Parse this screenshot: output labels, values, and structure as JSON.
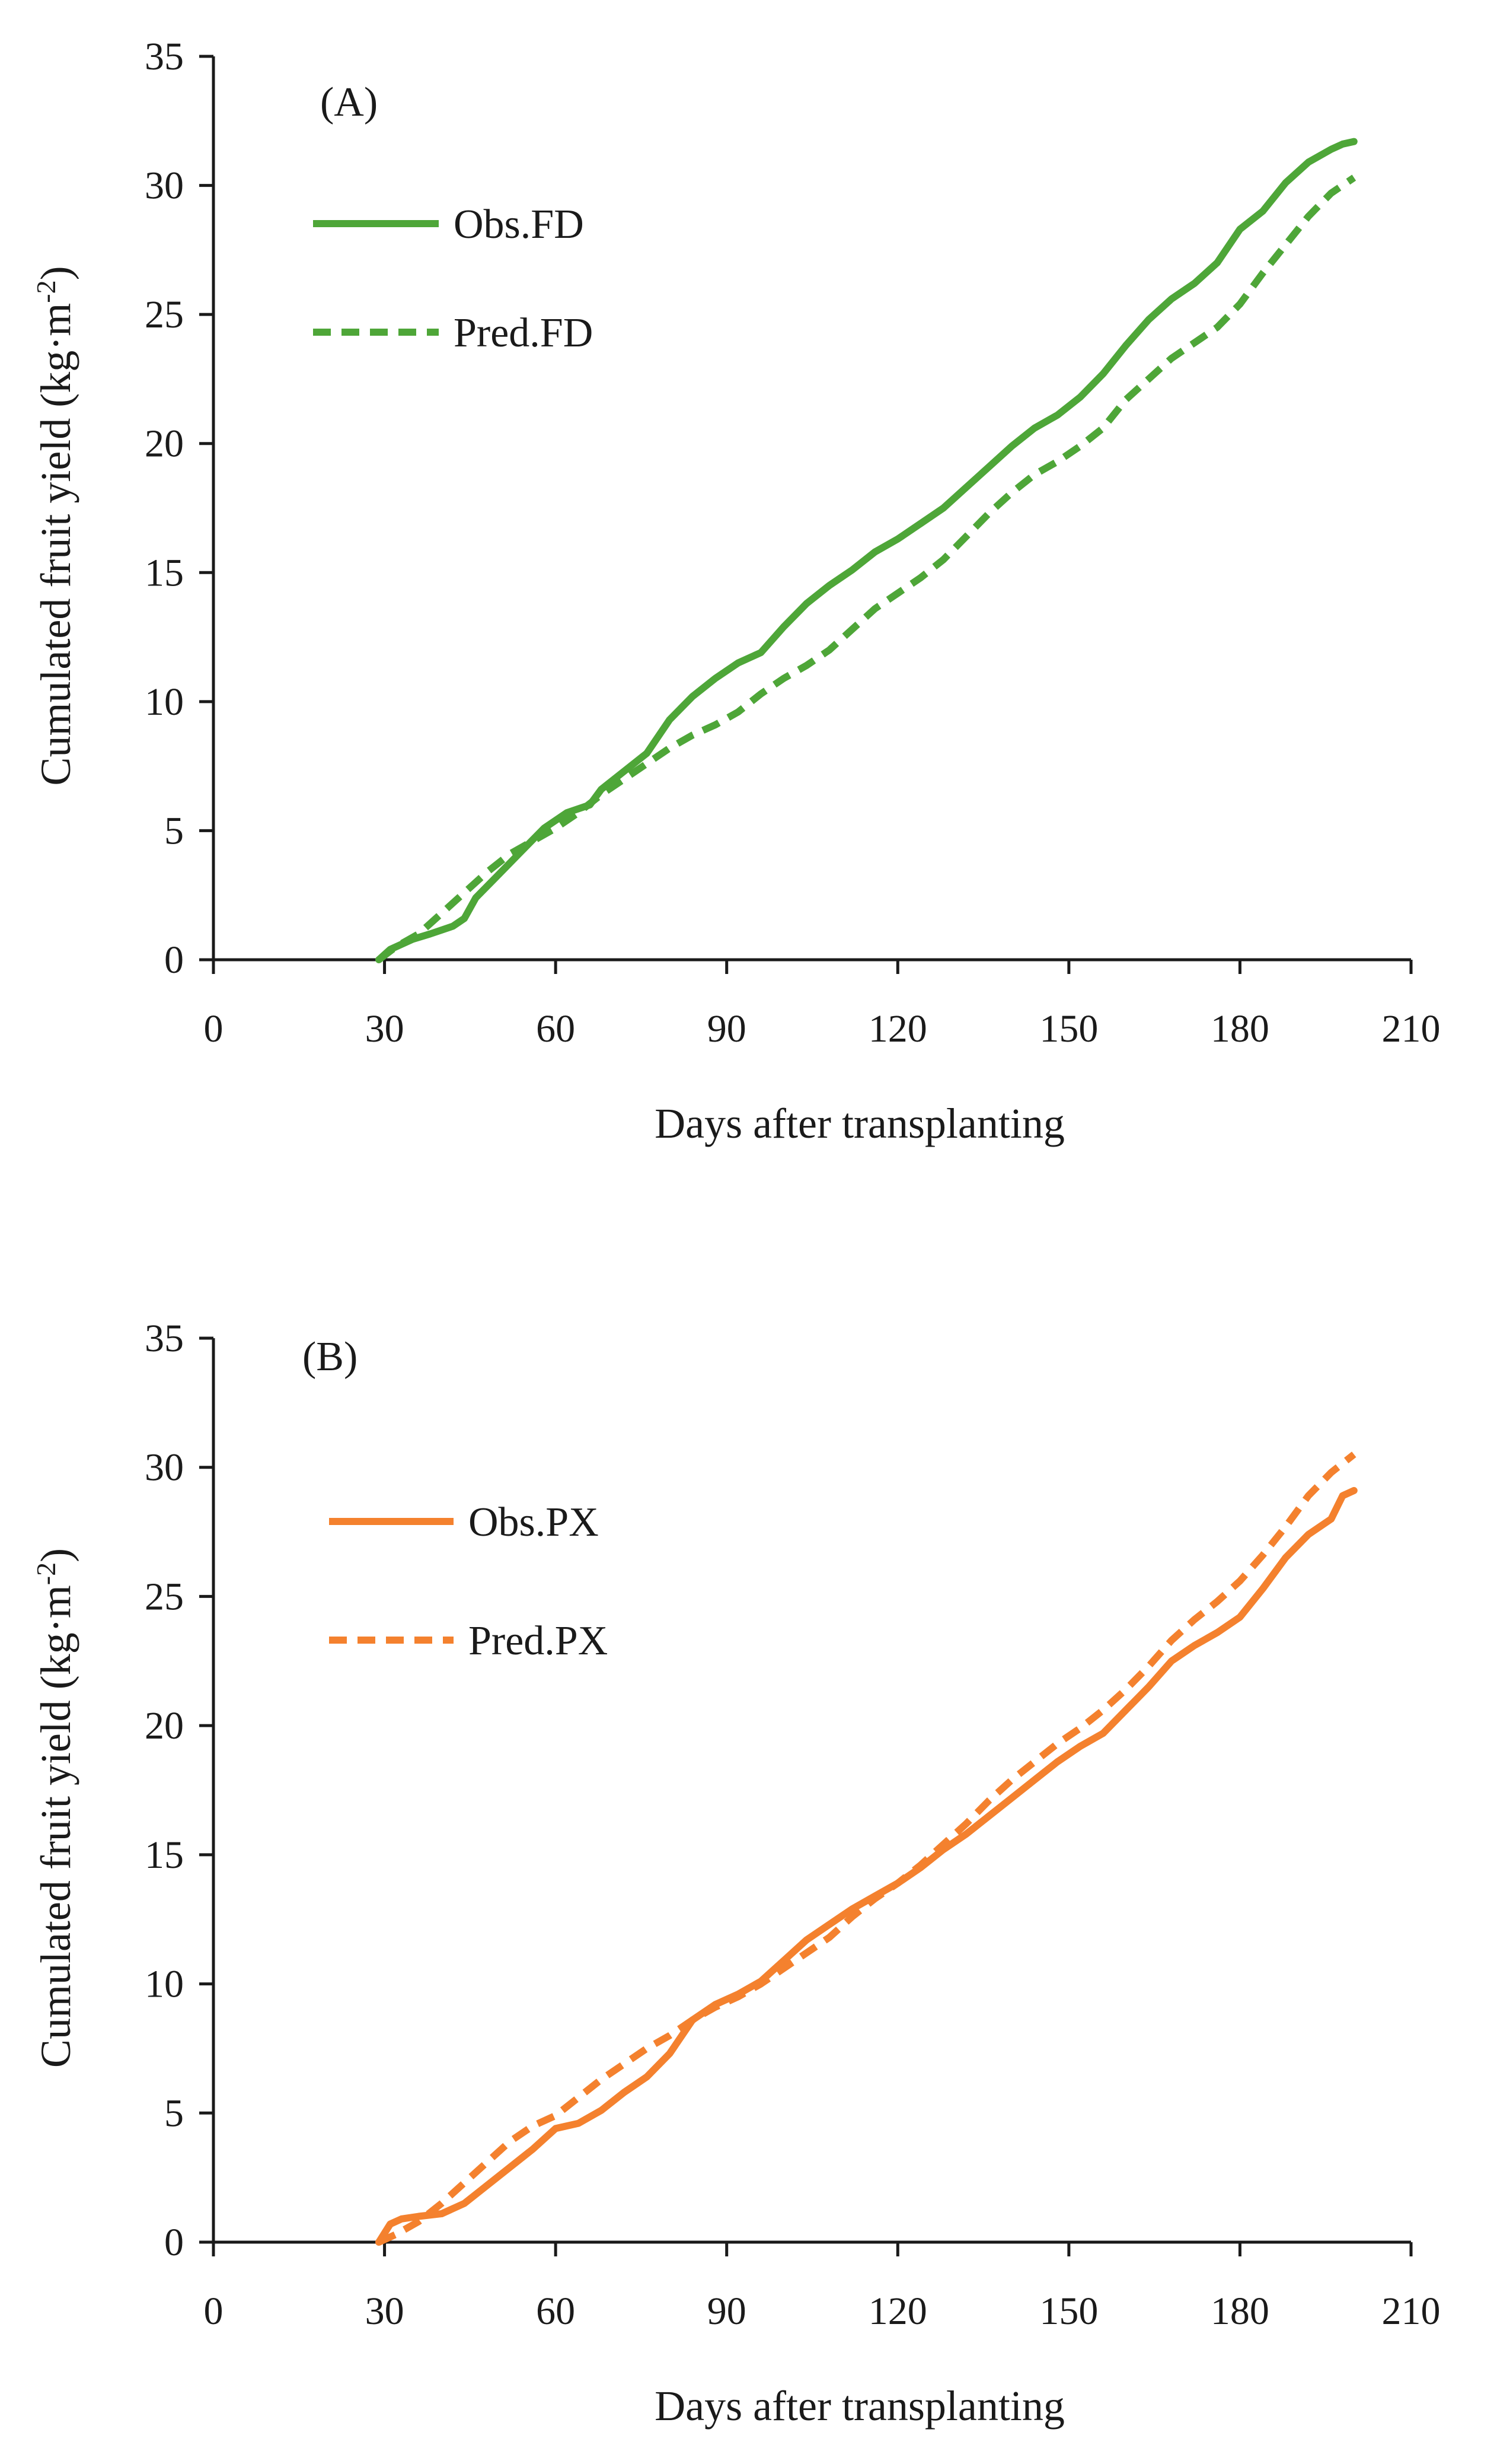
{
  "chart_data": [
    {
      "type": "line",
      "panel_label": "(A)",
      "title": "",
      "xlabel": "Days after transplanting",
      "ylabel": "Cumulated fruit yield (kg·m",
      "ylabel_sup": "-2",
      "ylabel_close": ")",
      "xlim": [
        0,
        210
      ],
      "ylim": [
        0,
        35
      ],
      "xticks": [
        "0",
        "30",
        "60",
        "90",
        "120",
        "150",
        "180",
        "210"
      ],
      "yticks": [
        "0",
        "5",
        "10",
        "15",
        "20",
        "25",
        "30",
        "35"
      ],
      "grid": false,
      "legend_position": "top-left",
      "series": [
        {
          "name": "Obs.FD",
          "style": "solid",
          "color": "#4ea638",
          "x": [
            29,
            31,
            33,
            35,
            38,
            42,
            44,
            46,
            50,
            54,
            58,
            62,
            66,
            68,
            72,
            76,
            80,
            84,
            88,
            92,
            96,
            100,
            104,
            108,
            112,
            116,
            120,
            124,
            128,
            132,
            136,
            140,
            144,
            148,
            152,
            156,
            160,
            164,
            168,
            172,
            176,
            180,
            184,
            188,
            192,
            196,
            198,
            200
          ],
          "y": [
            0,
            0.4,
            0.6,
            0.8,
            1.0,
            1.3,
            1.6,
            2.4,
            3.3,
            4.2,
            5.1,
            5.7,
            6.0,
            6.6,
            7.3,
            8.0,
            9.3,
            10.2,
            10.9,
            11.5,
            11.9,
            12.9,
            13.8,
            14.5,
            15.1,
            15.8,
            16.3,
            16.9,
            17.5,
            18.3,
            19.1,
            19.9,
            20.6,
            21.1,
            21.8,
            22.7,
            23.8,
            24.8,
            25.6,
            26.2,
            27.0,
            28.3,
            29.0,
            30.1,
            30.9,
            31.4,
            31.6,
            31.7
          ]
        },
        {
          "name": "Pred.FD",
          "style": "dashed",
          "color": "#4ea638",
          "x": [
            29,
            32,
            36,
            40,
            44,
            48,
            52,
            56,
            60,
            64,
            68,
            72,
            76,
            80,
            84,
            88,
            92,
            96,
            100,
            104,
            108,
            112,
            116,
            120,
            124,
            128,
            132,
            136,
            140,
            144,
            148,
            152,
            156,
            160,
            164,
            168,
            172,
            176,
            180,
            184,
            188,
            192,
            196,
            200
          ],
          "y": [
            0,
            0.5,
            1.0,
            1.8,
            2.6,
            3.4,
            4.1,
            4.6,
            5.1,
            5.7,
            6.4,
            7.0,
            7.6,
            8.2,
            8.7,
            9.1,
            9.6,
            10.3,
            10.9,
            11.4,
            12.0,
            12.8,
            13.6,
            14.2,
            14.8,
            15.5,
            16.4,
            17.3,
            18.1,
            18.8,
            19.3,
            19.9,
            20.6,
            21.7,
            22.5,
            23.3,
            23.9,
            24.5,
            25.4,
            26.6,
            27.7,
            28.8,
            29.7,
            30.3
          ]
        }
      ]
    },
    {
      "type": "line",
      "panel_label": "(B)",
      "title": "",
      "xlabel": "Days after transplanting",
      "ylabel": "Cumulated fruit yield (kg·m",
      "ylabel_sup": "-2",
      "ylabel_close": ")",
      "xlim": [
        0,
        210
      ],
      "ylim": [
        0,
        35
      ],
      "xticks": [
        "0",
        "30",
        "60",
        "90",
        "120",
        "150",
        "180",
        "210"
      ],
      "yticks": [
        "0",
        "5",
        "10",
        "15",
        "20",
        "25",
        "30",
        "35"
      ],
      "grid": false,
      "legend_position": "top-left",
      "series": [
        {
          "name": "Obs.PX",
          "style": "solid",
          "color": "#f4812e",
          "x": [
            29,
            31,
            33,
            36,
            40,
            44,
            48,
            52,
            56,
            60,
            64,
            68,
            72,
            76,
            80,
            84,
            88,
            92,
            96,
            100,
            104,
            108,
            112,
            116,
            120,
            124,
            128,
            132,
            136,
            140,
            144,
            148,
            152,
            156,
            160,
            164,
            168,
            172,
            176,
            180,
            184,
            188,
            192,
            196,
            198,
            200
          ],
          "y": [
            0,
            0.7,
            0.9,
            1.0,
            1.1,
            1.5,
            2.2,
            2.9,
            3.6,
            4.4,
            4.6,
            5.1,
            5.8,
            6.4,
            7.3,
            8.6,
            9.2,
            9.6,
            10.1,
            10.9,
            11.7,
            12.3,
            12.9,
            13.4,
            13.9,
            14.5,
            15.2,
            15.8,
            16.5,
            17.2,
            17.9,
            18.6,
            19.2,
            19.7,
            20.6,
            21.5,
            22.5,
            23.1,
            23.6,
            24.2,
            25.3,
            26.5,
            27.4,
            28.0,
            28.9,
            29.1
          ]
        },
        {
          "name": "Pred.PX",
          "style": "dashed",
          "color": "#f4812e",
          "x": [
            29,
            32,
            36,
            40,
            44,
            48,
            52,
            56,
            60,
            64,
            68,
            72,
            76,
            80,
            84,
            88,
            92,
            96,
            100,
            104,
            108,
            112,
            116,
            120,
            124,
            128,
            132,
            136,
            140,
            144,
            148,
            152,
            156,
            160,
            164,
            168,
            172,
            176,
            180,
            184,
            188,
            192,
            196,
            200
          ],
          "y": [
            0,
            0.3,
            0.8,
            1.5,
            2.3,
            3.1,
            3.9,
            4.5,
            4.9,
            5.6,
            6.3,
            6.9,
            7.5,
            8.0,
            8.6,
            9.1,
            9.5,
            10.0,
            10.6,
            11.2,
            11.8,
            12.6,
            13.3,
            13.9,
            14.6,
            15.4,
            16.2,
            17.1,
            17.9,
            18.6,
            19.3,
            19.9,
            20.6,
            21.4,
            22.3,
            23.3,
            24.1,
            24.8,
            25.6,
            26.6,
            27.7,
            28.9,
            29.8,
            30.5
          ]
        }
      ]
    }
  ]
}
